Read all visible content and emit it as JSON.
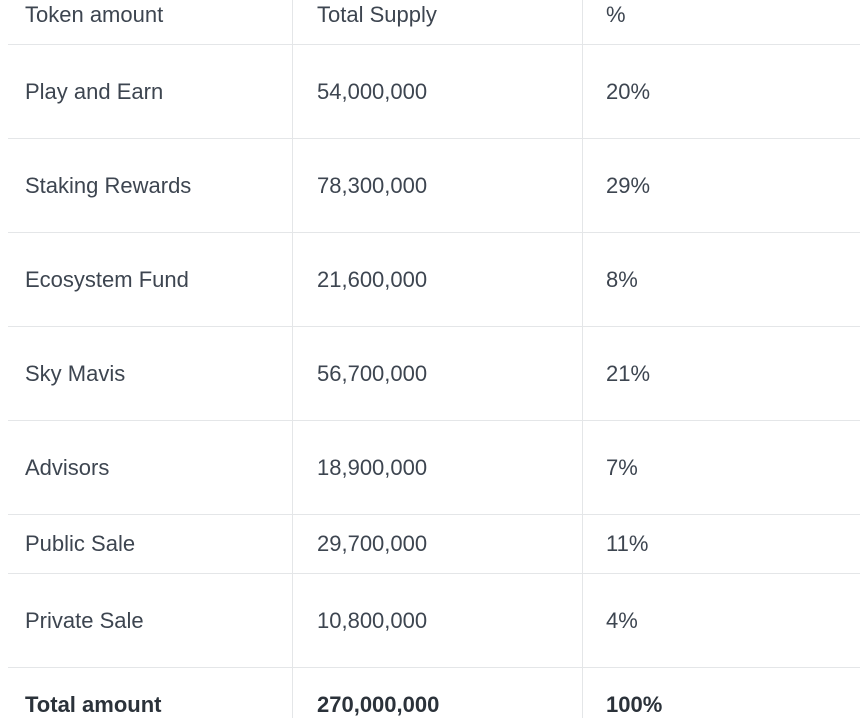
{
  "table": {
    "headers": [
      "Token amount",
      "Total Supply",
      "%"
    ],
    "rows": [
      {
        "name": "Play and Earn",
        "supply": "54,000,000",
        "percent": "20%"
      },
      {
        "name": "Staking Rewards",
        "supply": "78,300,000",
        "percent": "29%"
      },
      {
        "name": "Ecosystem Fund",
        "supply": "21,600,000",
        "percent": "8%"
      },
      {
        "name": "Sky Mavis",
        "supply": "56,700,000",
        "percent": "21%"
      },
      {
        "name": "Advisors",
        "supply": "18,900,000",
        "percent": "7%"
      },
      {
        "name": "Public Sale",
        "supply": "29,700,000",
        "percent": "11%"
      },
      {
        "name": "Private Sale",
        "supply": "10,800,000",
        "percent": "4%"
      }
    ],
    "total": {
      "name": "Total amount",
      "supply": "270,000,000",
      "percent": "100%"
    }
  }
}
